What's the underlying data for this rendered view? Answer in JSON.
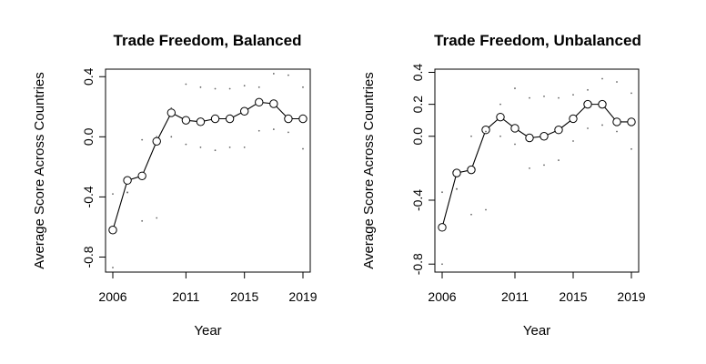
{
  "chart_data": [
    {
      "type": "line",
      "title": "Trade Freedom, Balanced",
      "xlabel": "Year",
      "ylabel": "Average Score Across Countries",
      "xlim": [
        2006,
        2019
      ],
      "ylim": [
        -0.9,
        0.45
      ],
      "xticks": [
        2006,
        2011,
        2015,
        2019
      ],
      "xtick_labels": [
        "2006",
        "2011",
        "2015",
        "2019"
      ],
      "yticks": [
        -0.8,
        -0.4,
        0.0,
        0.4
      ],
      "ytick_labels": [
        "-0.8",
        "-0.4",
        "0.0",
        "0.4"
      ],
      "x": [
        2006,
        2007,
        2008,
        2009,
        2010,
        2011,
        2012,
        2013,
        2014,
        2015,
        2016,
        2017,
        2018,
        2019
      ],
      "series": [
        {
          "values": [
            -0.62,
            -0.29,
            -0.26,
            -0.03,
            0.16,
            0.11,
            0.1,
            0.12,
            0.12,
            0.17,
            0.23,
            0.22,
            0.12,
            0.12
          ],
          "style": "line-circles"
        },
        {
          "values": [
            -0.87,
            -0.37,
            -0.56,
            -0.54,
            0.19,
            0.35,
            0.33,
            0.32,
            0.32,
            0.34,
            0.33,
            0.42,
            0.41,
            0.33
          ],
          "style": "dots"
        },
        {
          "values": [
            -0.38,
            -0.37,
            -0.02,
            0.0,
            0.0,
            -0.05,
            -0.07,
            -0.09,
            -0.07,
            -0.07,
            0.04,
            0.05,
            0.03,
            -0.08
          ],
          "style": "dots"
        }
      ],
      "grid": false,
      "legend": "none"
    },
    {
      "type": "line",
      "title": "Trade Freedom, Unbalanced",
      "xlabel": "Year",
      "ylabel": "Average Score Across Countries",
      "xlim": [
        2006,
        2019
      ],
      "ylim": [
        -0.85,
        0.42
      ],
      "xticks": [
        2006,
        2011,
        2015,
        2019
      ],
      "xtick_labels": [
        "2006",
        "2011",
        "2015",
        "2019"
      ],
      "yticks": [
        -0.8,
        -0.4,
        0.0,
        0.2,
        0.4
      ],
      "ytick_labels": [
        "-0.8",
        "-0.4",
        "0.0",
        "0.2",
        "0.4"
      ],
      "x": [
        2006,
        2007,
        2008,
        2009,
        2010,
        2011,
        2012,
        2013,
        2014,
        2015,
        2016,
        2017,
        2018,
        2019
      ],
      "series": [
        {
          "values": [
            -0.57,
            -0.23,
            -0.21,
            0.04,
            0.12,
            0.05,
            -0.01,
            0.0,
            0.04,
            0.11,
            0.2,
            0.2,
            0.09,
            0.09
          ],
          "style": "line-circles"
        },
        {
          "values": [
            -0.8,
            -0.33,
            -0.49,
            -0.46,
            0.2,
            0.3,
            0.24,
            0.25,
            0.24,
            0.26,
            0.29,
            0.36,
            0.34,
            0.27
          ],
          "style": "dots"
        },
        {
          "values": [
            -0.35,
            -0.33,
            0.0,
            0.03,
            0.0,
            -0.05,
            -0.2,
            -0.18,
            -0.15,
            -0.03,
            0.05,
            0.07,
            0.03,
            -0.08
          ],
          "style": "dots"
        }
      ],
      "grid": false,
      "legend": "none"
    }
  ]
}
